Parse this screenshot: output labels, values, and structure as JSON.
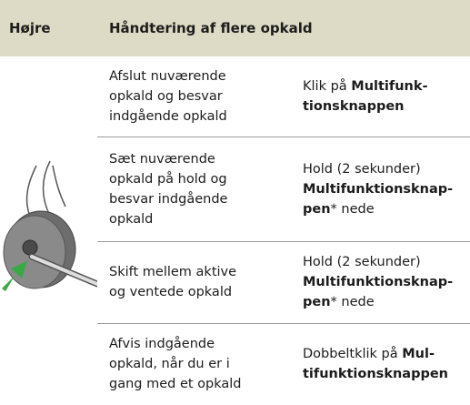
{
  "header": {
    "col1": "Højre",
    "col2": "Håndtering af flere opkald"
  },
  "rows": [
    {
      "action": [
        "Afslut nuværende",
        "opkald og besvar",
        "indgående opkald"
      ],
      "instruction": [
        [
          {
            "text": "Klik på "
          },
          {
            "text": "Multifunk-",
            "bold": true
          }
        ],
        [
          {
            "text": "tionsknappen",
            "bold": true
          }
        ]
      ]
    },
    {
      "action": [
        "Sæt nuværende",
        "opkald på hold og",
        "besvar indgående",
        "opkald"
      ],
      "instruction": [
        [
          {
            "text": "Hold (2 sekunder)"
          }
        ],
        [
          {
            "text": "Multifunktionsknap-",
            "bold": true
          }
        ],
        [
          {
            "text": "pen",
            "bold": true
          },
          {
            "text": "* nede"
          }
        ]
      ]
    },
    {
      "action": [
        "Skift mellem aktive",
        "og ventede opkald"
      ],
      "instruction": [
        [
          {
            "text": "Hold (2 sekunder)"
          }
        ],
        [
          {
            "text": "Multifunktionsknap-",
            "bold": true
          }
        ],
        [
          {
            "text": "pen",
            "bold": true
          },
          {
            "text": "* nede"
          }
        ]
      ]
    },
    {
      "action": [
        "Afvis indgående",
        "opkald, når du er i",
        "gang med et opkald"
      ],
      "instruction": [
        [
          {
            "text": "Dobbeltklik på "
          },
          {
            "text": "Mul-",
            "bold": true
          }
        ],
        [
          {
            "text": "tifunktionsknappen",
            "bold": true
          }
        ]
      ]
    }
  ]
}
